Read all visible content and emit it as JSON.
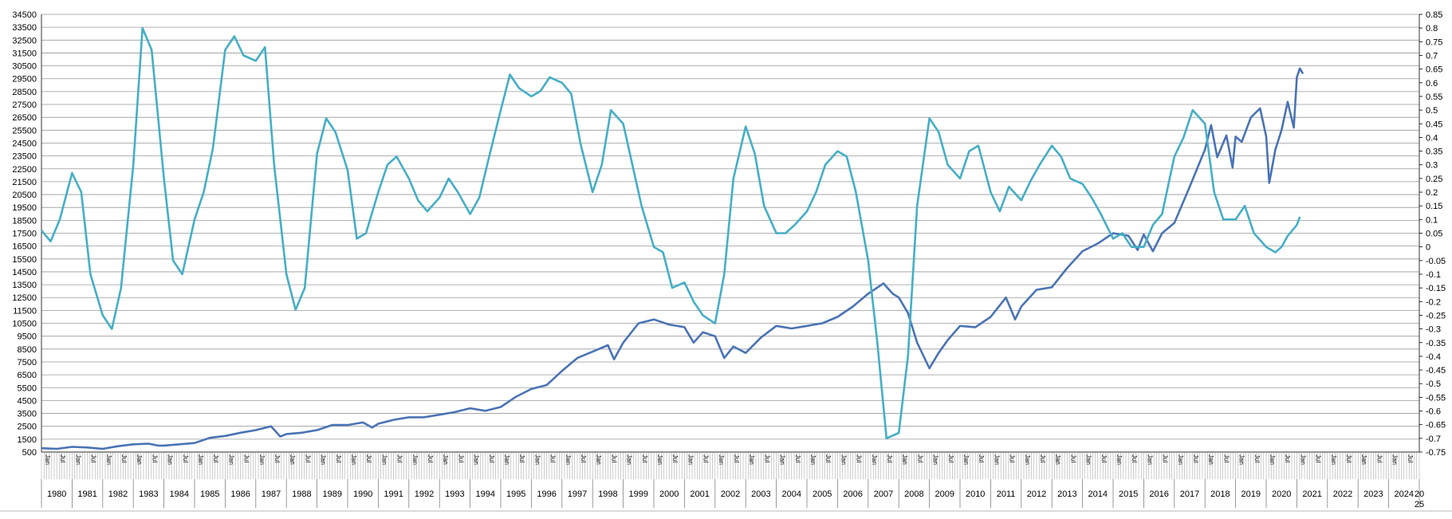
{
  "chart_data": {
    "type": "line",
    "title": "",
    "xlabel": "",
    "ylabel": "",
    "y_left": {
      "min": 500,
      "max": 34500,
      "step": 1000
    },
    "y_right": {
      "min": -0.75,
      "max": 0.85,
      "step": 0.05
    },
    "grid": "horizontal",
    "legend": "none",
    "years": [
      "1980",
      "1981",
      "1982",
      "1983",
      "1984",
      "1985",
      "1986",
      "1987",
      "1988",
      "1989",
      "1990",
      "1991",
      "1992",
      "1993",
      "1994",
      "1995",
      "1996",
      "1997",
      "1998",
      "1999",
      "2000",
      "2001",
      "2002",
      "2003",
      "2004",
      "2005",
      "2006",
      "2007",
      "2008",
      "2009",
      "2010",
      "2011",
      "2012",
      "2013",
      "2014",
      "2015",
      "2016",
      "2017",
      "2018",
      "2019",
      "2020",
      "2021",
      "2022",
      "2023",
      "2024"
    ],
    "last_tick": "20 25",
    "month_ticks": [
      "Jan",
      "Jul"
    ],
    "colors": {
      "series_left": "#4a73b5",
      "series_right": "#45aec6",
      "grid": "#999999"
    },
    "series": [
      {
        "axis": "left",
        "points": [
          [
            1980.0,
            800
          ],
          [
            1980.5,
            750
          ],
          [
            1981.0,
            900
          ],
          [
            1981.5,
            850
          ],
          [
            1982.0,
            750
          ],
          [
            1982.5,
            950
          ],
          [
            1983.0,
            1100
          ],
          [
            1983.5,
            1150
          ],
          [
            1983.8,
            1000
          ],
          [
            1984.0,
            1000
          ],
          [
            1984.5,
            1100
          ],
          [
            1985.0,
            1200
          ],
          [
            1985.5,
            1600
          ],
          [
            1986.0,
            1750
          ],
          [
            1986.5,
            2000
          ],
          [
            1987.0,
            2200
          ],
          [
            1987.5,
            2500
          ],
          [
            1987.8,
            1700
          ],
          [
            1988.0,
            1900
          ],
          [
            1988.5,
            2000
          ],
          [
            1989.0,
            2200
          ],
          [
            1989.5,
            2600
          ],
          [
            1990.0,
            2600
          ],
          [
            1990.5,
            2800
          ],
          [
            1990.8,
            2400
          ],
          [
            1991.0,
            2700
          ],
          [
            1991.5,
            3000
          ],
          [
            1992.0,
            3200
          ],
          [
            1992.5,
            3200
          ],
          [
            1993.0,
            3400
          ],
          [
            1993.5,
            3600
          ],
          [
            1994.0,
            3900
          ],
          [
            1994.5,
            3700
          ],
          [
            1995.0,
            4000
          ],
          [
            1995.5,
            4800
          ],
          [
            1996.0,
            5400
          ],
          [
            1996.5,
            5700
          ],
          [
            1997.0,
            6800
          ],
          [
            1997.5,
            7800
          ],
          [
            1998.0,
            8300
          ],
          [
            1998.5,
            8800
          ],
          [
            1998.7,
            7700
          ],
          [
            1999.0,
            9000
          ],
          [
            1999.5,
            10500
          ],
          [
            2000.0,
            10800
          ],
          [
            2000.5,
            10400
          ],
          [
            2001.0,
            10200
          ],
          [
            2001.3,
            9000
          ],
          [
            2001.6,
            9800
          ],
          [
            2002.0,
            9500
          ],
          [
            2002.3,
            7800
          ],
          [
            2002.6,
            8700
          ],
          [
            2003.0,
            8200
          ],
          [
            2003.5,
            9400
          ],
          [
            2004.0,
            10300
          ],
          [
            2004.5,
            10100
          ],
          [
            2005.0,
            10300
          ],
          [
            2005.5,
            10500
          ],
          [
            2006.0,
            11000
          ],
          [
            2006.5,
            11800
          ],
          [
            2007.0,
            12800
          ],
          [
            2007.5,
            13600
          ],
          [
            2007.8,
            12800
          ],
          [
            2008.0,
            12500
          ],
          [
            2008.3,
            11300
          ],
          [
            2008.6,
            9000
          ],
          [
            2008.9,
            7500
          ],
          [
            2009.0,
            7000
          ],
          [
            2009.3,
            8200
          ],
          [
            2009.6,
            9200
          ],
          [
            2010.0,
            10300
          ],
          [
            2010.5,
            10200
          ],
          [
            2011.0,
            11000
          ],
          [
            2011.5,
            12500
          ],
          [
            2011.8,
            10800
          ],
          [
            2012.0,
            11800
          ],
          [
            2012.5,
            13100
          ],
          [
            2013.0,
            13300
          ],
          [
            2013.5,
            14800
          ],
          [
            2014.0,
            16100
          ],
          [
            2014.5,
            16700
          ],
          [
            2015.0,
            17500
          ],
          [
            2015.5,
            17300
          ],
          [
            2015.8,
            16200
          ],
          [
            2016.0,
            17400
          ],
          [
            2016.3,
            16100
          ],
          [
            2016.6,
            17500
          ],
          [
            2017.0,
            18300
          ],
          [
            2017.5,
            21100
          ],
          [
            2018.0,
            24000
          ],
          [
            2018.2,
            25900
          ],
          [
            2018.4,
            23400
          ],
          [
            2018.7,
            25100
          ],
          [
            2018.9,
            22600
          ],
          [
            2019.0,
            25000
          ],
          [
            2019.2,
            24600
          ],
          [
            2019.5,
            26500
          ],
          [
            2019.8,
            27200
          ],
          [
            2020.0,
            25000
          ],
          [
            2020.1,
            21400
          ],
          [
            2020.3,
            24000
          ],
          [
            2020.5,
            25500
          ],
          [
            2020.7,
            27700
          ],
          [
            2020.9,
            25700
          ],
          [
            2021.0,
            29600
          ],
          [
            2021.1,
            30300
          ],
          [
            2021.2,
            29900
          ]
        ]
      },
      {
        "axis": "right",
        "points": [
          [
            1980.0,
            0.06
          ],
          [
            1980.3,
            0.02
          ],
          [
            1980.6,
            0.1
          ],
          [
            1981.0,
            0.27
          ],
          [
            1981.3,
            0.2
          ],
          [
            1981.6,
            -0.1
          ],
          [
            1982.0,
            -0.25
          ],
          [
            1982.3,
            -0.3
          ],
          [
            1982.6,
            -0.15
          ],
          [
            1983.0,
            0.3
          ],
          [
            1983.3,
            0.8
          ],
          [
            1983.6,
            0.72
          ],
          [
            1984.0,
            0.25
          ],
          [
            1984.3,
            -0.05
          ],
          [
            1984.6,
            -0.1
          ],
          [
            1985.0,
            0.1
          ],
          [
            1985.3,
            0.2
          ],
          [
            1985.6,
            0.36
          ],
          [
            1986.0,
            0.72
          ],
          [
            1986.3,
            0.77
          ],
          [
            1986.6,
            0.7
          ],
          [
            1987.0,
            0.68
          ],
          [
            1987.3,
            0.73
          ],
          [
            1987.6,
            0.3
          ],
          [
            1988.0,
            -0.1
          ],
          [
            1988.3,
            -0.23
          ],
          [
            1988.6,
            -0.15
          ],
          [
            1989.0,
            0.34
          ],
          [
            1989.3,
            0.47
          ],
          [
            1989.6,
            0.42
          ],
          [
            1990.0,
            0.28
          ],
          [
            1990.3,
            0.03
          ],
          [
            1990.6,
            0.05
          ],
          [
            1991.0,
            0.2
          ],
          [
            1991.3,
            0.3
          ],
          [
            1991.6,
            0.33
          ],
          [
            1992.0,
            0.25
          ],
          [
            1992.3,
            0.17
          ],
          [
            1992.6,
            0.13
          ],
          [
            1993.0,
            0.18
          ],
          [
            1993.3,
            0.25
          ],
          [
            1993.6,
            0.2
          ],
          [
            1994.0,
            0.12
          ],
          [
            1994.3,
            0.18
          ],
          [
            1994.6,
            0.32
          ],
          [
            1995.0,
            0.5
          ],
          [
            1995.3,
            0.63
          ],
          [
            1995.6,
            0.58
          ],
          [
            1996.0,
            0.55
          ],
          [
            1996.3,
            0.57
          ],
          [
            1996.6,
            0.62
          ],
          [
            1997.0,
            0.6
          ],
          [
            1997.3,
            0.56
          ],
          [
            1997.6,
            0.38
          ],
          [
            1998.0,
            0.2
          ],
          [
            1998.3,
            0.3
          ],
          [
            1998.6,
            0.5
          ],
          [
            1999.0,
            0.45
          ],
          [
            1999.3,
            0.3
          ],
          [
            1999.6,
            0.15
          ],
          [
            2000.0,
            0.0
          ],
          [
            2000.3,
            -0.02
          ],
          [
            2000.6,
            -0.15
          ],
          [
            2001.0,
            -0.13
          ],
          [
            2001.3,
            -0.2
          ],
          [
            2001.6,
            -0.25
          ],
          [
            2002.0,
            -0.28
          ],
          [
            2002.3,
            -0.1
          ],
          [
            2002.6,
            0.25
          ],
          [
            2003.0,
            0.44
          ],
          [
            2003.3,
            0.34
          ],
          [
            2003.6,
            0.15
          ],
          [
            2004.0,
            0.05
          ],
          [
            2004.3,
            0.05
          ],
          [
            2004.6,
            0.08
          ],
          [
            2005.0,
            0.13
          ],
          [
            2005.3,
            0.2
          ],
          [
            2005.6,
            0.3
          ],
          [
            2006.0,
            0.35
          ],
          [
            2006.3,
            0.33
          ],
          [
            2006.6,
            0.2
          ],
          [
            2007.0,
            -0.05
          ],
          [
            2007.3,
            -0.35
          ],
          [
            2007.6,
            -0.7
          ],
          [
            2008.0,
            -0.68
          ],
          [
            2008.3,
            -0.4
          ],
          [
            2008.6,
            0.15
          ],
          [
            2009.0,
            0.47
          ],
          [
            2009.3,
            0.42
          ],
          [
            2009.6,
            0.3
          ],
          [
            2010.0,
            0.25
          ],
          [
            2010.3,
            0.35
          ],
          [
            2010.6,
            0.37
          ],
          [
            2011.0,
            0.2
          ],
          [
            2011.3,
            0.13
          ],
          [
            2011.6,
            0.22
          ],
          [
            2012.0,
            0.17
          ],
          [
            2012.3,
            0.24
          ],
          [
            2012.6,
            0.3
          ],
          [
            2013.0,
            0.37
          ],
          [
            2013.3,
            0.33
          ],
          [
            2013.6,
            0.25
          ],
          [
            2014.0,
            0.23
          ],
          [
            2014.3,
            0.18
          ],
          [
            2014.6,
            0.12
          ],
          [
            2015.0,
            0.03
          ],
          [
            2015.3,
            0.05
          ],
          [
            2015.6,
            0.0
          ],
          [
            2016.0,
            0.0
          ],
          [
            2016.3,
            0.08
          ],
          [
            2016.6,
            0.12
          ],
          [
            2017.0,
            0.33
          ],
          [
            2017.3,
            0.4
          ],
          [
            2017.6,
            0.5
          ],
          [
            2018.0,
            0.45
          ],
          [
            2018.3,
            0.2
          ],
          [
            2018.6,
            0.1
          ],
          [
            2019.0,
            0.1
          ],
          [
            2019.3,
            0.15
          ],
          [
            2019.6,
            0.05
          ],
          [
            2020.0,
            0.0
          ],
          [
            2020.3,
            -0.02
          ],
          [
            2020.5,
            0.0
          ],
          [
            2020.7,
            0.04
          ],
          [
            2021.0,
            0.08
          ],
          [
            2021.1,
            0.11
          ]
        ]
      }
    ]
  }
}
